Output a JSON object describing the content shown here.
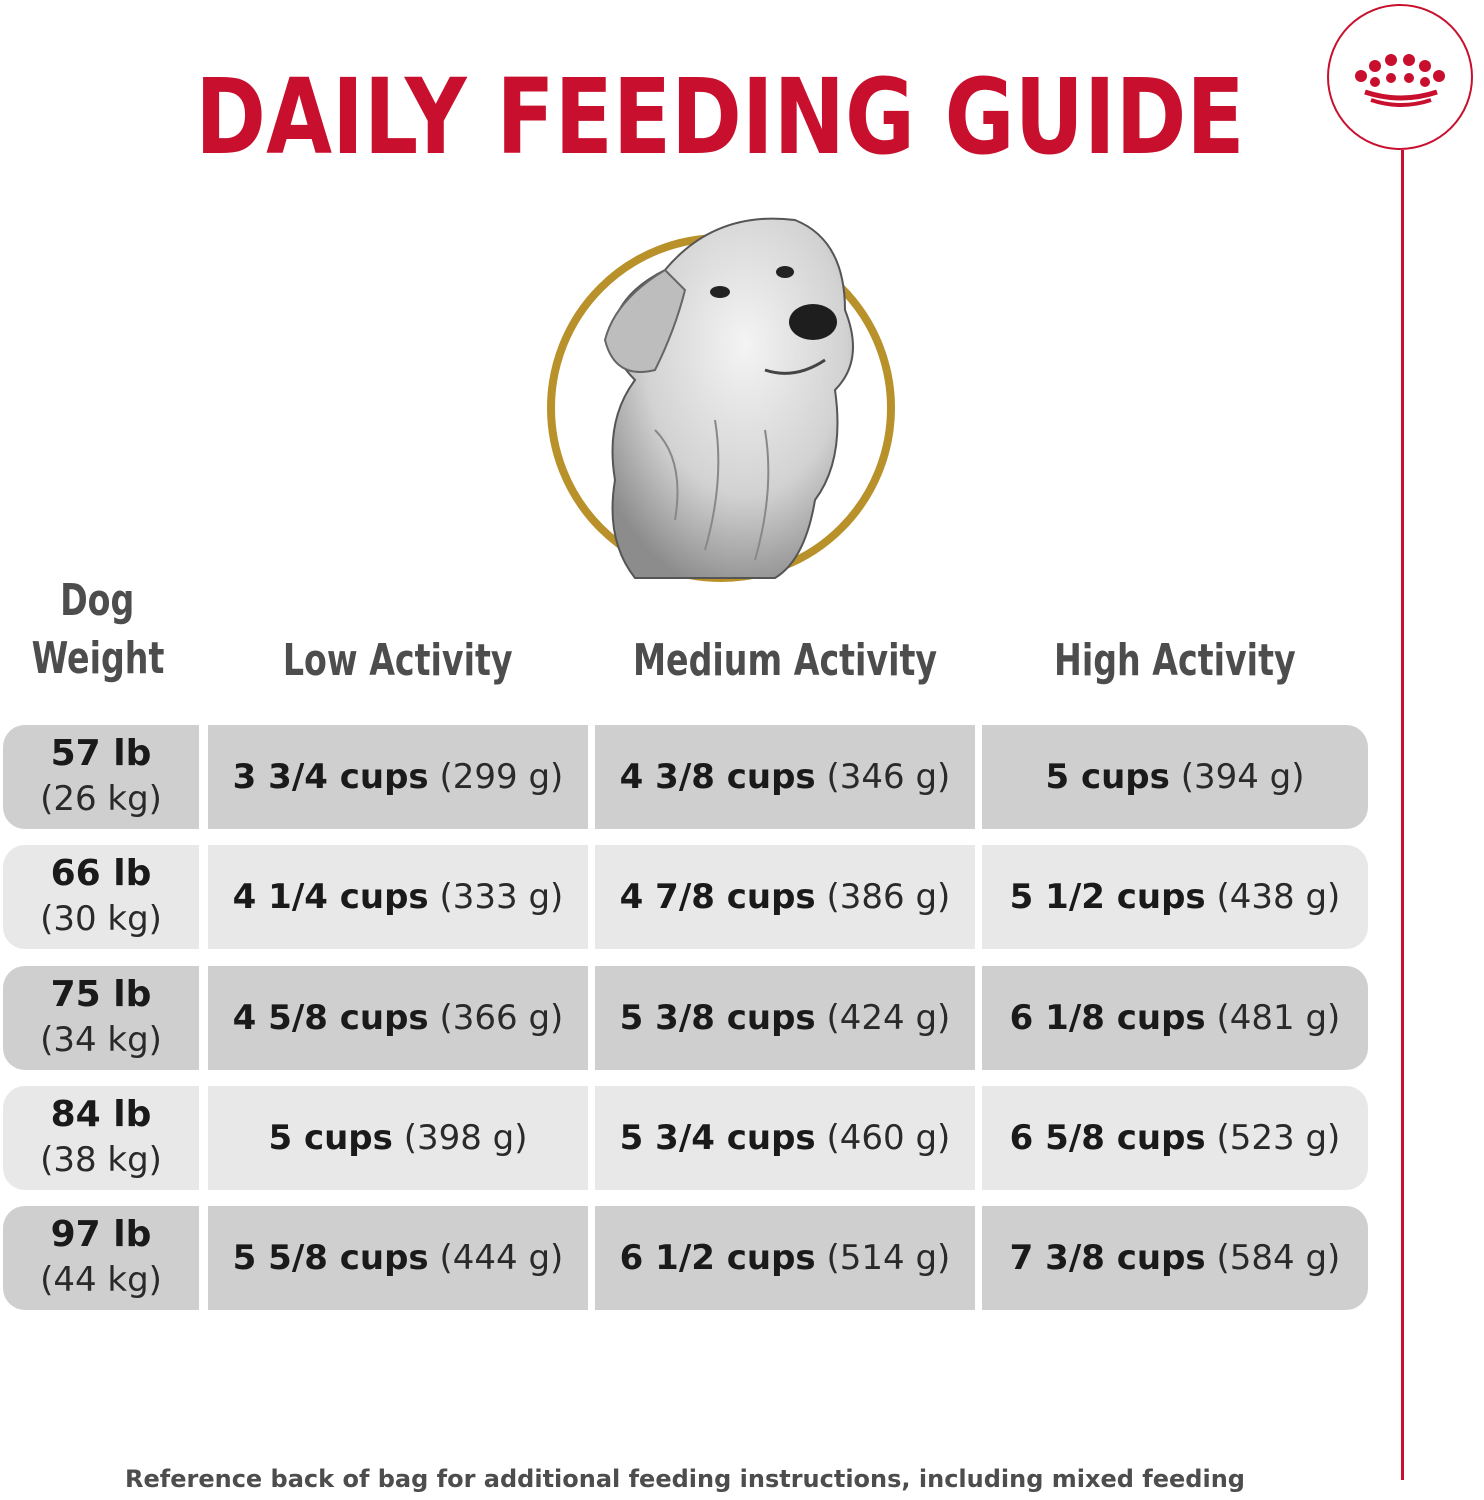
{
  "title": "DAILY FEEDING GUIDE",
  "colors": {
    "brand_red": "#c8102e",
    "gold_ring": "#b8912a",
    "row_dark": "#cfcfcf",
    "row_light": "#e8e8e8"
  },
  "logo_icon": "crown-icon",
  "illustration_icon": "dog-portrait-icon",
  "headers": {
    "weight_line1": "Dog",
    "weight_line2": "Weight",
    "low": "Low Activity",
    "medium": "Medium Activity",
    "high": "High Activity"
  },
  "rows": [
    {
      "lb": "57 lb",
      "kg": "(26 kg)",
      "low": {
        "cups": "3 3/4 cups",
        "grams": "(299 g)"
      },
      "medium": {
        "cups": "4 3/8 cups",
        "grams": "(346 g)"
      },
      "high": {
        "cups": "5 cups",
        "grams": "(394 g)"
      }
    },
    {
      "lb": "66 lb",
      "kg": "(30 kg)",
      "low": {
        "cups": "4 1/4 cups",
        "grams": "(333 g)"
      },
      "medium": {
        "cups": "4 7/8 cups",
        "grams": "(386 g)"
      },
      "high": {
        "cups": "5 1/2 cups",
        "grams": "(438 g)"
      }
    },
    {
      "lb": "75 lb",
      "kg": "(34 kg)",
      "low": {
        "cups": "4 5/8 cups",
        "grams": "(366 g)"
      },
      "medium": {
        "cups": "5 3/8 cups",
        "grams": "(424 g)"
      },
      "high": {
        "cups": "6 1/8 cups",
        "grams": "(481 g)"
      }
    },
    {
      "lb": "84 lb",
      "kg": "(38 kg)",
      "low": {
        "cups": "5 cups",
        "grams": "(398 g)"
      },
      "medium": {
        "cups": "5 3/4 cups",
        "grams": "(460 g)"
      },
      "high": {
        "cups": "6 5/8 cups",
        "grams": "(523 g)"
      }
    },
    {
      "lb": "97 lb",
      "kg": "(44 kg)",
      "low": {
        "cups": "5 5/8 cups",
        "grams": "(444 g)"
      },
      "medium": {
        "cups": "6 1/2 cups",
        "grams": "(514 g)"
      },
      "high": {
        "cups": "7 3/8 cups",
        "grams": "(584 g)"
      }
    }
  ],
  "footer": "Reference back of bag for additional feeding instructions, including mixed feeding"
}
